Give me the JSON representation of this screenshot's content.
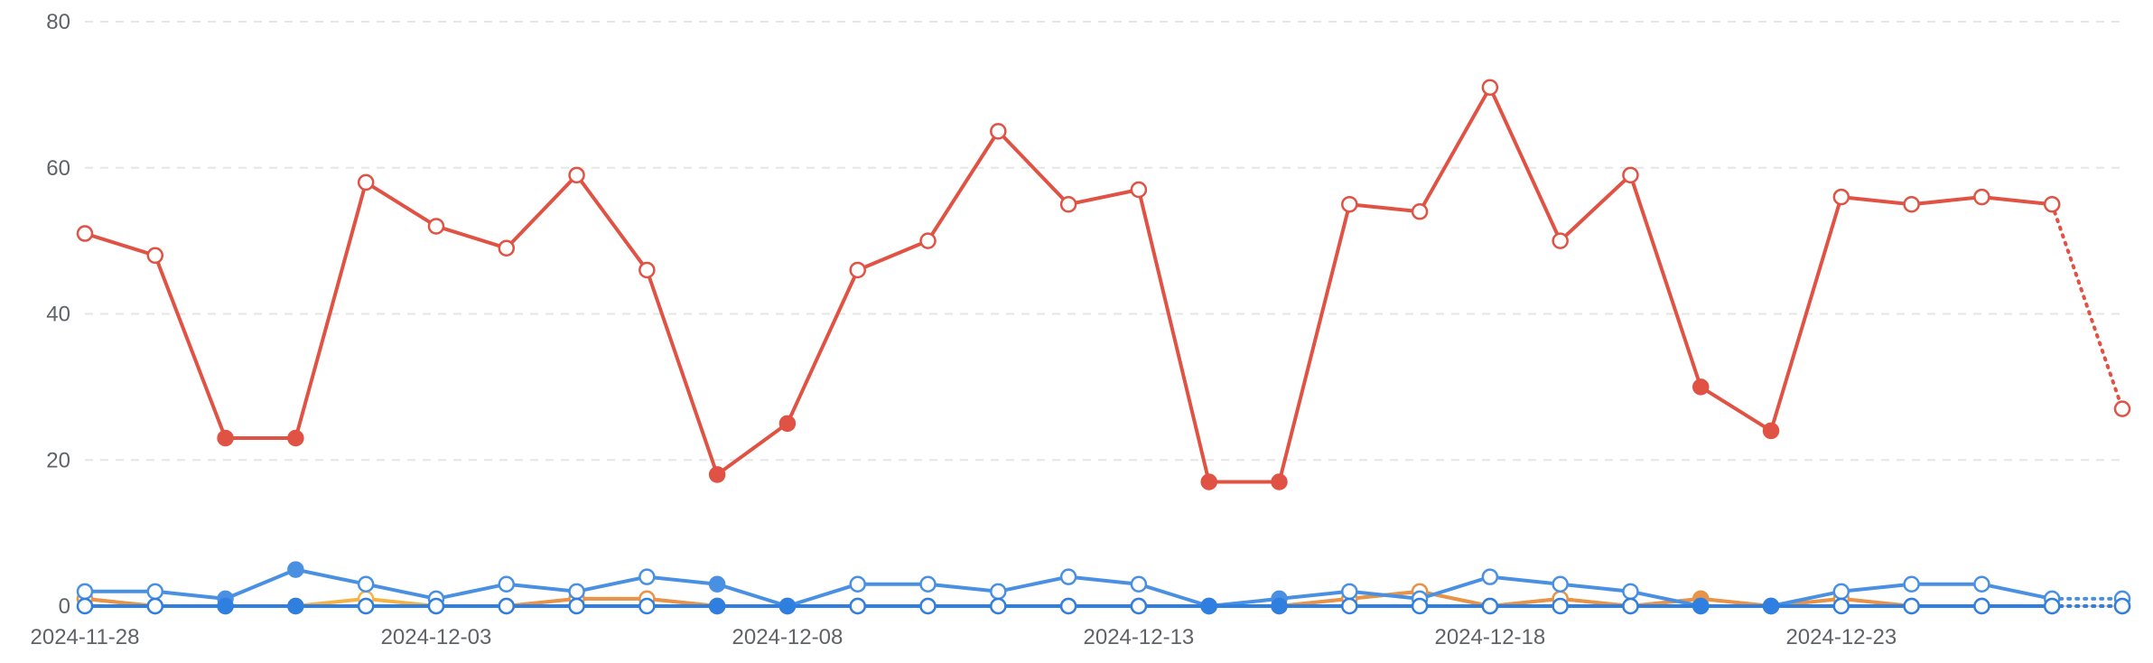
{
  "chart_data": {
    "type": "line",
    "x": [
      "2024-11-28",
      "2024-11-29",
      "2024-11-30",
      "2024-12-01",
      "2024-12-02",
      "2024-12-03",
      "2024-12-04",
      "2024-12-05",
      "2024-12-06",
      "2024-12-07",
      "2024-12-08",
      "2024-12-09",
      "2024-12-10",
      "2024-12-11",
      "2024-12-12",
      "2024-12-13",
      "2024-12-14",
      "2024-12-15",
      "2024-12-16",
      "2024-12-17",
      "2024-12-18",
      "2024-12-19",
      "2024-12-20",
      "2024-12-21",
      "2024-12-22",
      "2024-12-23",
      "2024-12-24",
      "2024-12-25",
      "2024-12-26",
      "2024-12-27"
    ],
    "xticks": [
      "2024-11-28",
      "2024-12-03",
      "2024-12-08",
      "2024-12-13",
      "2024-12-18",
      "2024-12-23"
    ],
    "yticks": [
      0,
      20,
      40,
      60,
      80
    ],
    "ylim": [
      0,
      80
    ],
    "grid": true,
    "series": [
      {
        "color": "#e05243",
        "values": [
          51,
          48,
          23,
          23,
          58,
          52,
          49,
          59,
          46,
          18,
          25,
          46,
          50,
          65,
          55,
          57,
          17,
          17,
          55,
          54,
          71,
          50,
          59,
          30,
          24,
          56,
          55,
          56,
          55,
          27
        ],
        "filled": [
          2,
          3,
          9,
          10,
          16,
          17,
          23,
          24
        ],
        "projected_from": 28
      },
      {
        "color": "#f6b344",
        "values": [
          1,
          0,
          0,
          0,
          1,
          0,
          0,
          1,
          1,
          0,
          0,
          0,
          0,
          0,
          0,
          0,
          0,
          0,
          1,
          2,
          0,
          1,
          0,
          1,
          0,
          1,
          0,
          0,
          0,
          0
        ],
        "filled": [],
        "projected_from": 28
      },
      {
        "color": "#e8934a",
        "values": [
          1,
          0,
          0,
          0,
          0,
          0,
          0,
          1,
          1,
          0,
          0,
          0,
          0,
          0,
          0,
          0,
          0,
          0,
          1,
          2,
          0,
          1,
          0,
          1,
          0,
          1,
          0,
          0,
          0,
          0
        ],
        "filled": [
          23
        ],
        "projected_from": 28
      },
      {
        "color": "#4a90e2",
        "values": [
          2,
          2,
          1,
          5,
          3,
          1,
          3,
          2,
          4,
          3,
          0,
          3,
          3,
          2,
          4,
          3,
          0,
          1,
          2,
          1,
          4,
          3,
          2,
          0,
          0,
          2,
          3,
          3,
          1,
          1
        ],
        "filled": [
          2,
          3,
          9,
          10,
          16,
          17,
          23,
          24
        ],
        "projected_from": 28
      },
      {
        "color": "#2f7fe0",
        "values": [
          0,
          0,
          0,
          0,
          0,
          0,
          0,
          0,
          0,
          0,
          0,
          0,
          0,
          0,
          0,
          0,
          0,
          0,
          0,
          0,
          0,
          0,
          0,
          0,
          0,
          0,
          0,
          0,
          0,
          0
        ],
        "filled": [
          2,
          3,
          9,
          10,
          16,
          17,
          23,
          24
        ],
        "projected_from": 28
      }
    ]
  }
}
